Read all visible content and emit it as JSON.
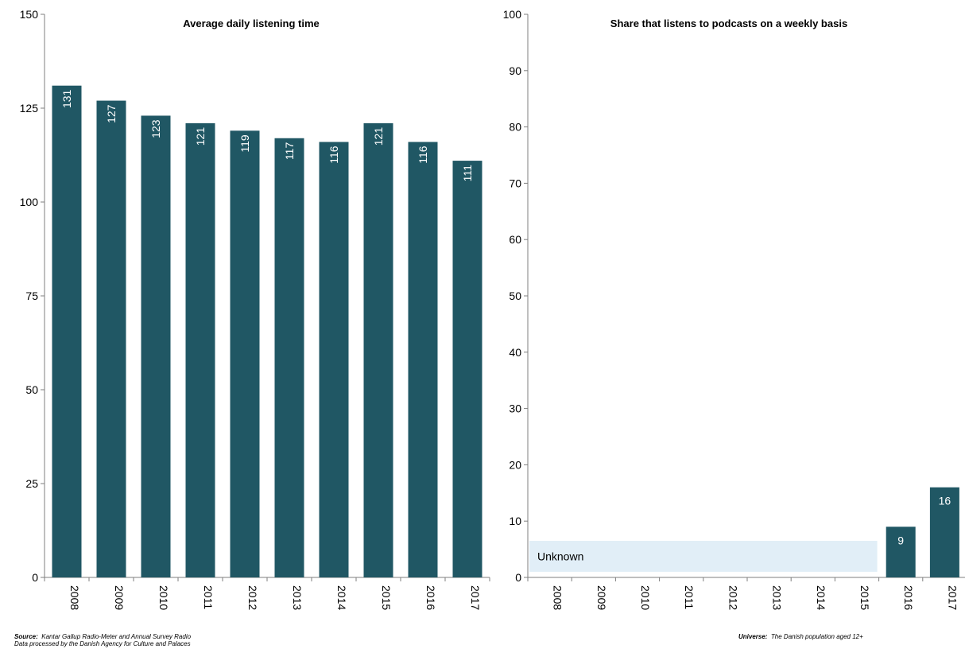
{
  "colors": {
    "bar": "#205764",
    "unknown_fill": "#e1eef7",
    "axis": "#7f7f7f",
    "text": "#000000",
    "bar_label": "#ffffff"
  },
  "chart_data": [
    {
      "type": "bar",
      "title": "Average daily listening time",
      "categories": [
        "2008",
        "2009",
        "2010",
        "2011",
        "2012",
        "2013",
        "2014",
        "2015",
        "2016",
        "2017"
      ],
      "values": [
        131,
        127,
        123,
        121,
        119,
        117,
        116,
        121,
        116,
        111
      ],
      "data_labels": [
        "131",
        "127",
        "123",
        "121",
        "119",
        "117",
        "116",
        "121",
        "116",
        "111"
      ],
      "data_label_orientation": "vertical",
      "ylim": [
        0,
        150
      ],
      "yticks": [
        0,
        25,
        50,
        75,
        100,
        125,
        150
      ],
      "xtick_orientation": "vertical",
      "grid": false,
      "legend": "none"
    },
    {
      "type": "bar",
      "title": "Share that listens to podcasts on a weekly basis",
      "categories": [
        "2008",
        "2009",
        "2010",
        "2011",
        "2012",
        "2013",
        "2014",
        "2015",
        "2016",
        "2017"
      ],
      "values": [
        null,
        null,
        null,
        null,
        null,
        null,
        null,
        null,
        9,
        16
      ],
      "data_labels": [
        "",
        "",
        "",
        "",
        "",
        "",
        "",
        "",
        "9",
        "16"
      ],
      "data_label_orientation": "horizontal",
      "ylim": [
        0,
        100
      ],
      "yticks": [
        0,
        10,
        20,
        30,
        40,
        50,
        60,
        70,
        80,
        90,
        100
      ],
      "xtick_orientation": "vertical",
      "grid": false,
      "legend": "none",
      "annotation": {
        "text": "Unknown",
        "from_category": "2008",
        "to_category": "2015",
        "y_range": [
          1,
          6.5
        ]
      }
    }
  ],
  "footnotes": {
    "source_label": "Source:",
    "source_text": "Kantar Gallup Radio-Meter and Annual Survey Radio",
    "source_line2": "Data processed by the Danish Agency for Culture and Palaces",
    "universe_label": "Universe:",
    "universe_text": "The Danish population aged 12+"
  }
}
